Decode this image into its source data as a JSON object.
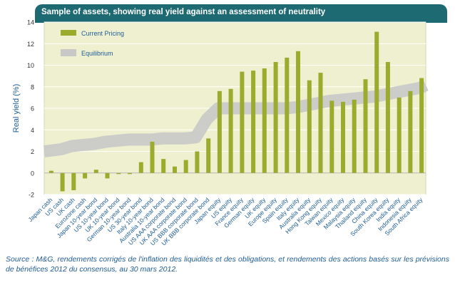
{
  "chart_data": {
    "type": "bar",
    "title": "Sample of assets, showing real yield against an assessment of neutrality",
    "ylabel": "Real yield (%)",
    "xlabel": "",
    "ylim": [
      -2,
      14
    ],
    "yticks": [
      -2,
      0,
      2,
      4,
      6,
      8,
      10,
      12,
      14
    ],
    "grid": true,
    "legend_position": "top-left",
    "categories": [
      "Japan cash",
      "US cash",
      "UK cash",
      "Eurozone cash",
      "Japan 10-year bond",
      "US 10-year bond",
      "UK 10-year bond",
      "German 10-year bond",
      "US 30-year bond",
      "Italy 10-year bond",
      "Australia 10-year bond",
      "US AAA corporate bond",
      "UK AAA corporate bond",
      "US BBB corporate bond",
      "UK BBB corporate bond",
      "Japan equity",
      "US equity",
      "France equity",
      "German equity",
      "UK equity",
      "Europe equity",
      "Spain equity",
      "Italy equity",
      "Australia equity",
      "Hong Kong equity",
      "Taiwan equity",
      "Mexico equity",
      "Malaysia equity",
      "Thailand equity",
      "China equity",
      "South Korea equity",
      "India equity",
      "Indonesia equity",
      "South Africa equity"
    ],
    "series": [
      {
        "name": "Current Pricing",
        "values": [
          0.2,
          -1.7,
          -1.6,
          -0.5,
          0.3,
          -0.5,
          -0.1,
          -0.1,
          1.0,
          2.9,
          1.3,
          0.6,
          1.2,
          2.0,
          3.2,
          7.6,
          7.8,
          9.4,
          9.5,
          9.7,
          10.3,
          10.7,
          11.3,
          8.6,
          9.3,
          6.7,
          6.6,
          6.8,
          8.7,
          13.1,
          10.3,
          7.0,
          7.6,
          8.8
        ]
      },
      {
        "name": "Equilibrium",
        "values": [
          2.0,
          2.2,
          2.5,
          2.6,
          2.7,
          2.9,
          3.0,
          3.1,
          3.1,
          3.1,
          3.2,
          3.2,
          3.2,
          3.3,
          5.0,
          6.0,
          6.0,
          6.0,
          6.0,
          6.0,
          6.0,
          6.0,
          6.1,
          6.3,
          6.5,
          6.7,
          6.8,
          6.9,
          7.0,
          7.1,
          7.3,
          7.5,
          7.7,
          7.9
        ]
      }
    ],
    "colors": {
      "bars": "#9aab2e",
      "equilibrium_band": "#c8c8c8",
      "plot_background": "#eef0d0",
      "title_bar": "#1d6a73",
      "source_text": "#1f5c94"
    }
  },
  "source": "Source : M&G, rendements corrigés de l'inflation des liquidités et des obligations, et rendements des actions basés sur les prévisions de bénéfices 2012 du consensus, au 30 mars 2012."
}
